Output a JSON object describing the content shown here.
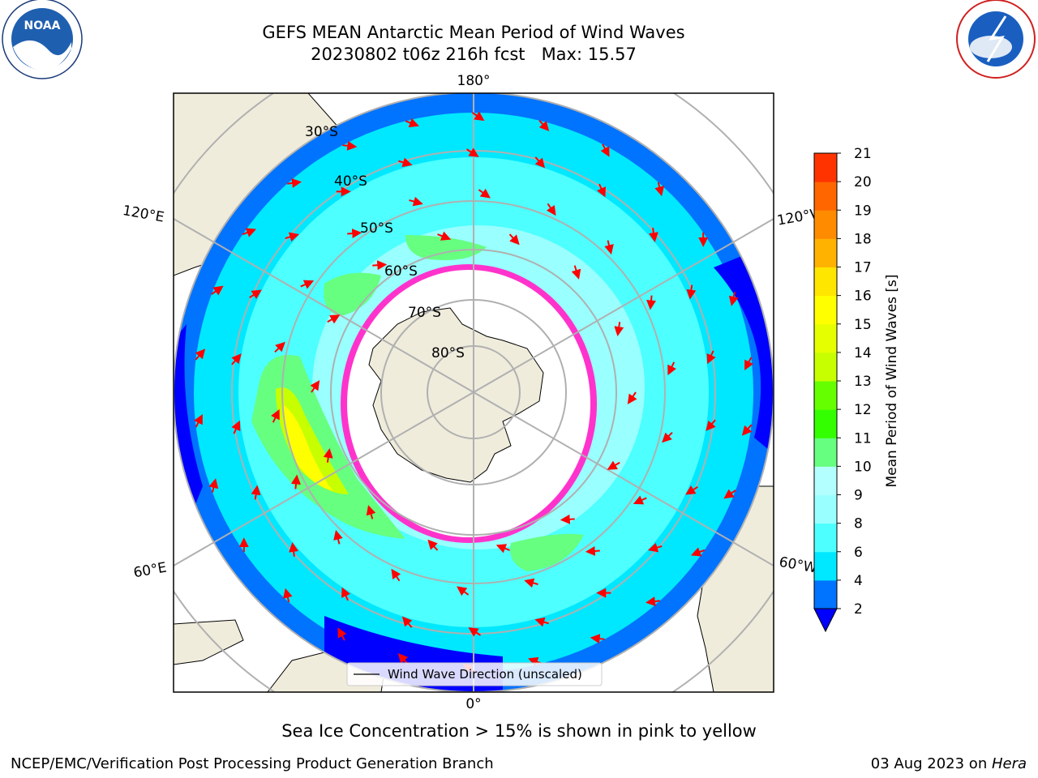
{
  "header": {
    "title_line1": "GEFS MEAN Antarctic Mean Period of Wind Waves",
    "title_line2": "20230802 t06z 216h fcst   Max: 15.57"
  },
  "logos": {
    "left": {
      "text": "NOAA",
      "icon": "noaa-logo"
    },
    "right": {
      "icon": "nws-logo"
    }
  },
  "map": {
    "longitude_labels": {
      "top": "180°",
      "bottom": "0°",
      "left_upper": "120°E",
      "left_lower": "60°E",
      "right_upper": "120°W",
      "right_lower": "60°W"
    },
    "latitude_labels": [
      "30°S",
      "40°S",
      "50°S",
      "60°S",
      "70°S",
      "80°S"
    ],
    "legend_label": "Wind Wave Direction (unscaled)",
    "colors": {
      "land": "#efecdc",
      "ice": "#ffffff",
      "arrow": "#ff0000",
      "grid": "#b0b0b0"
    }
  },
  "colorbar": {
    "label": "Mean Period of Wind Waves [s]",
    "ticks": [
      "2",
      "4",
      "6",
      "8",
      "9",
      "10",
      "11",
      "12",
      "13",
      "14",
      "15",
      "16",
      "17",
      "18",
      "19",
      "20",
      "21"
    ],
    "colors": [
      "#0073ff",
      "#00e8ff",
      "#4dffff",
      "#99ffff",
      "#b3ffff",
      "#66ff80",
      "#33ff00",
      "#66ff00",
      "#c7ff00",
      "#e6ff00",
      "#ffff00",
      "#ffe600",
      "#ffb300",
      "#ff8c00",
      "#ff6600",
      "#ff3300",
      "#ff0000"
    ],
    "under_color": "#0000ff"
  },
  "note": "Sea Ice Concentration > 15% is shown in pink to yellow",
  "footer": {
    "left": "NCEP/EMC/Verification Post Processing Product Generation Branch",
    "right_date": "03 Aug 2023 on ",
    "right_machine": "Hera"
  }
}
